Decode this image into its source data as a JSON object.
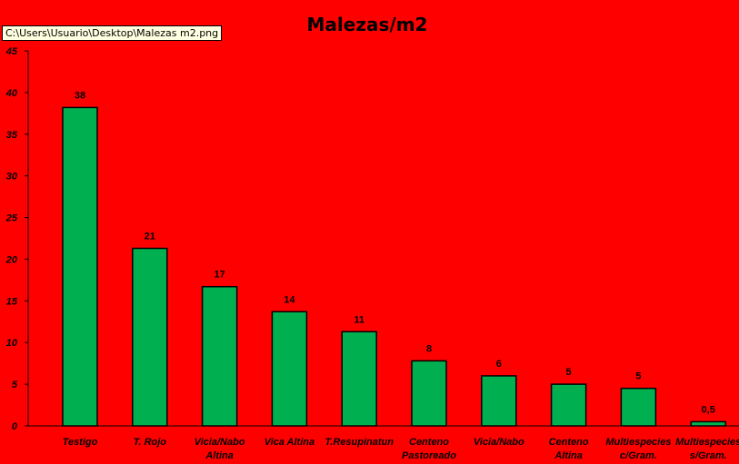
{
  "tooltip": "C:\\Users\\Usuario\\Desktop\\Malezas m2.png",
  "colors": {
    "background": "#ff0000",
    "bar": "#00b050",
    "text": "#000000"
  },
  "chart_data": {
    "type": "bar",
    "title": "Malezas/m2",
    "xlabel": "",
    "ylabel": "",
    "ylim": [
      0,
      45
    ],
    "yticks": [
      0,
      5,
      10,
      15,
      20,
      25,
      30,
      35,
      40,
      45
    ],
    "grid": false,
    "legend": "none",
    "categories": [
      [
        "Testigo"
      ],
      [
        "T. Rojo"
      ],
      [
        "Vicia/Nabo",
        "Altina"
      ],
      [
        "Vica Altina"
      ],
      [
        "T.Resupinatun"
      ],
      [
        "Centeno",
        "Pastoreado"
      ],
      [
        "Vicia/Nabo"
      ],
      [
        "Centeno",
        "Altina"
      ],
      [
        "Multiespecies",
        "c/Gram."
      ],
      [
        "Multiespecies",
        "s/Gram."
      ]
    ],
    "values": [
      38.2,
      21.3,
      16.7,
      13.7,
      11.3,
      7.8,
      6,
      5,
      4.5,
      0.5
    ],
    "data_labels": [
      "38",
      "21",
      "17",
      "14",
      "11",
      "8",
      "6",
      "5",
      "5",
      "0,5"
    ]
  }
}
